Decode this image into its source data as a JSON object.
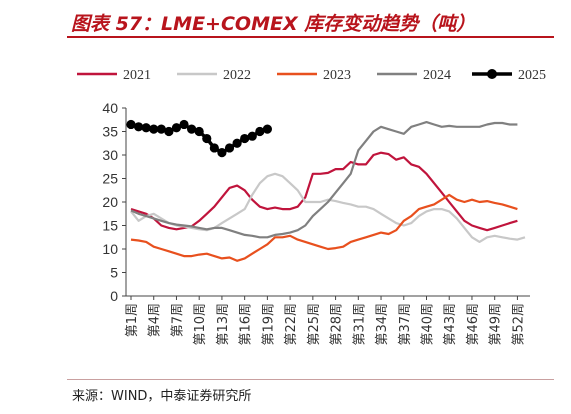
{
  "title": "图表 57：LME+COMEX 库存变动趋势（吨）",
  "source": "来源：WIND，中泰证券研究所",
  "chart_data": {
    "type": "line",
    "title": "图表 57：LME+COMEX 库存变动趋势（吨）",
    "xlabel": "",
    "ylabel": "",
    "ylim": [
      0,
      40
    ],
    "yticks": [
      0,
      5,
      10,
      15,
      20,
      25,
      30,
      35,
      40
    ],
    "grid": false,
    "legend_position": "top",
    "x": [
      "第1周",
      "第2周",
      "第3周",
      "第4周",
      "第5周",
      "第6周",
      "第7周",
      "第8周",
      "第9周",
      "第10周",
      "第11周",
      "第12周",
      "第13周",
      "第14周",
      "第15周",
      "第16周",
      "第17周",
      "第18周",
      "第19周",
      "第20周",
      "第21周",
      "第22周",
      "第23周",
      "第24周",
      "第25周",
      "第26周",
      "第27周",
      "第28周",
      "第29周",
      "第30周",
      "第31周",
      "第32周",
      "第33周",
      "第34周",
      "第35周",
      "第36周",
      "第37周",
      "第38周",
      "第39周",
      "第40周",
      "第41周",
      "第42周",
      "第43周",
      "第44周",
      "第45周",
      "第46周",
      "第47周",
      "第48周",
      "第49周",
      "第50周",
      "第51周",
      "第52周",
      "第53周"
    ],
    "xtick_labels": [
      "第1周",
      "第4周",
      "第7周",
      "第10周",
      "第13周",
      "第16周",
      "第19周",
      "第22周",
      "第25周",
      "第28周",
      "第31周",
      "第34周",
      "第37周",
      "第40周",
      "第43周",
      "第46周",
      "第49周",
      "第52周"
    ],
    "series": [
      {
        "name": "2021",
        "color": "#c0143c",
        "values": [
          18.5,
          18.0,
          17.5,
          16.5,
          15.0,
          14.5,
          14.2,
          14.5,
          14.8,
          16.0,
          17.5,
          19.0,
          21.0,
          23.0,
          23.5,
          22.5,
          20.5,
          19.0,
          18.5,
          18.8,
          18.5,
          18.5,
          19.0,
          21.0,
          26.0,
          26.0,
          26.2,
          27.0,
          27.0,
          28.5,
          28.0,
          28.0,
          30.0,
          30.5,
          30.2,
          29.0,
          29.5,
          28.0,
          27.5,
          26.0,
          24.0,
          22.0,
          20.0,
          18.0,
          16.0,
          15.0,
          14.5,
          14.0,
          14.5,
          15.0,
          15.5,
          16.0,
          null
        ]
      },
      {
        "name": "2022",
        "color": "#c8c8c8",
        "values": [
          18.0,
          16.0,
          17.0,
          17.5,
          16.5,
          15.5,
          15.0,
          14.8,
          14.5,
          14.2,
          14.0,
          14.5,
          15.5,
          16.5,
          17.5,
          18.5,
          21.5,
          24.0,
          25.5,
          26.0,
          25.5,
          24.0,
          22.5,
          20.0,
          20.0,
          20.0,
          20.5,
          20.2,
          19.8,
          19.5,
          19.0,
          19.0,
          18.5,
          17.5,
          16.5,
          15.5,
          15.0,
          15.5,
          17.0,
          18.0,
          18.5,
          18.5,
          18.0,
          16.5,
          14.5,
          12.5,
          11.5,
          12.5,
          12.8,
          12.5,
          12.2,
          12.0,
          12.5
        ]
      },
      {
        "name": "2023",
        "color": "#e8501e",
        "values": [
          12.0,
          11.8,
          11.5,
          10.5,
          10.0,
          9.5,
          9.0,
          8.5,
          8.5,
          8.8,
          9.0,
          8.5,
          8.0,
          8.2,
          7.5,
          8.0,
          9.0,
          10.0,
          11.0,
          12.5,
          12.5,
          12.8,
          12.0,
          11.5,
          11.0,
          10.5,
          10.0,
          10.2,
          10.5,
          11.5,
          12.0,
          12.5,
          13.0,
          13.5,
          13.2,
          14.0,
          16.0,
          17.0,
          18.5,
          19.0,
          19.5,
          20.5,
          21.5,
          20.5,
          20.0,
          20.5,
          20.0,
          20.2,
          19.8,
          19.5,
          19.0,
          18.5,
          null
        ]
      },
      {
        "name": "2024",
        "color": "#808080",
        "values": [
          18.2,
          17.5,
          17.0,
          16.5,
          16.0,
          15.5,
          15.2,
          15.0,
          14.8,
          14.5,
          14.2,
          14.5,
          14.5,
          14.0,
          13.5,
          13.0,
          12.8,
          12.5,
          12.5,
          13.0,
          13.2,
          13.5,
          14.0,
          15.0,
          17.0,
          18.5,
          20.0,
          22.0,
          24.0,
          26.0,
          31.0,
          33.0,
          35.0,
          36.0,
          35.5,
          35.0,
          34.5,
          36.0,
          36.5,
          37.0,
          36.5,
          36.0,
          36.2,
          36.0,
          36.0,
          36.0,
          36.0,
          36.5,
          36.8,
          36.8,
          36.5,
          36.5,
          null
        ]
      },
      {
        "name": "2025",
        "color": "#000000",
        "values": [
          36.5,
          36.0,
          35.8,
          35.5,
          35.5,
          35.0,
          35.8,
          36.5,
          35.5,
          35.0,
          33.5,
          31.5,
          30.5,
          31.5,
          32.5,
          33.5,
          34.0,
          35.0,
          35.5,
          null,
          null,
          null,
          null,
          null,
          null,
          null,
          null,
          null,
          null,
          null,
          null,
          null,
          null,
          null,
          null,
          null,
          null,
          null,
          null,
          null,
          null,
          null,
          null,
          null,
          null,
          null,
          null,
          null,
          null,
          null,
          null,
          null,
          null
        ]
      }
    ]
  }
}
